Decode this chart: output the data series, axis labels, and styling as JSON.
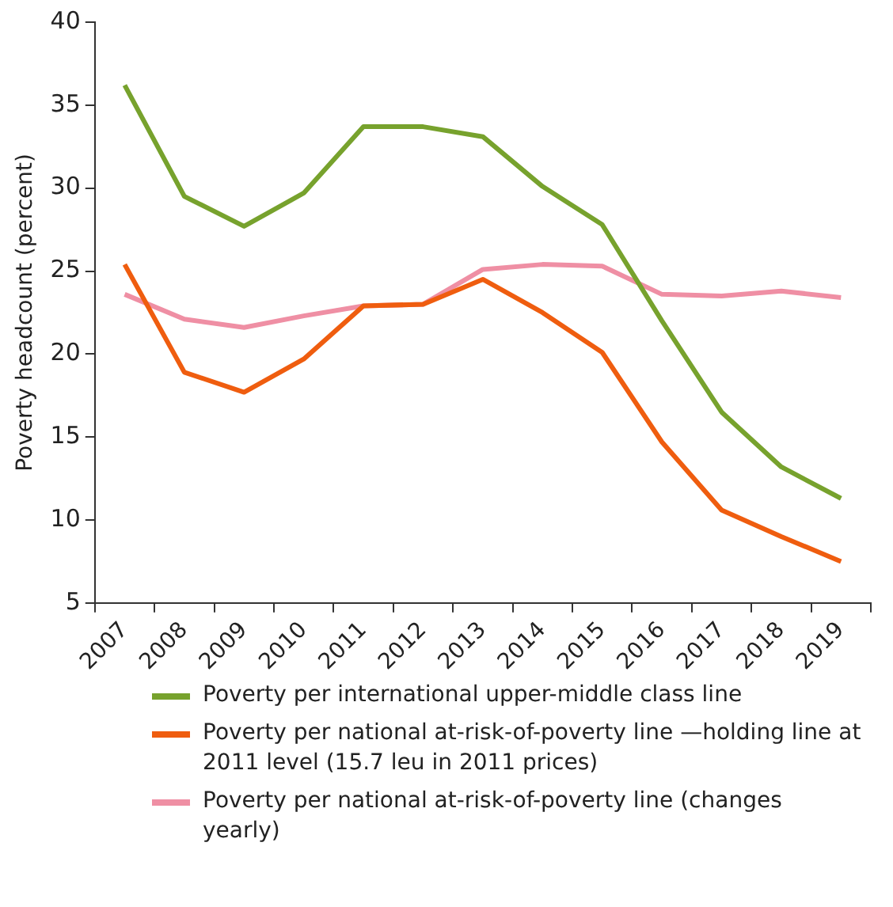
{
  "chart_data": {
    "type": "line",
    "ylabel": "Poverty headcount (percent)",
    "categories": [
      "2007",
      "2008",
      "2009",
      "2010",
      "2011",
      "2012",
      "2013",
      "2014",
      "2015",
      "2016",
      "2017",
      "2018",
      "2019"
    ],
    "series": [
      {
        "name": "Poverty per international upper-middle class line",
        "color": "#77a22d",
        "values": [
          36.2,
          29.5,
          27.7,
          29.7,
          33.7,
          33.7,
          33.1,
          30.1,
          27.8,
          22.0,
          16.5,
          13.2,
          11.3
        ]
      },
      {
        "name": "Poverty per national at-risk-of-poverty line —holding line at 2011 level (15.7 leu in 2011 prices)",
        "color": "#ef5d0f",
        "values": [
          25.4,
          18.9,
          17.7,
          19.7,
          22.9,
          23.0,
          24.5,
          22.5,
          20.1,
          14.7,
          10.6,
          9.0,
          7.5
        ]
      },
      {
        "name": "Poverty per national at-risk-of-poverty line (changes yearly)",
        "color": "#ef8fa4",
        "values": [
          23.6,
          22.1,
          21.6,
          22.3,
          22.9,
          23.0,
          25.1,
          25.4,
          25.3,
          23.6,
          23.5,
          23.8,
          23.4
        ]
      }
    ],
    "ylim": [
      5,
      40
    ],
    "yticks": [
      5,
      10,
      15,
      20,
      25,
      30,
      35,
      40
    ],
    "grid": false,
    "legend": "bottom",
    "marker": "none",
    "line_style": "solid"
  }
}
